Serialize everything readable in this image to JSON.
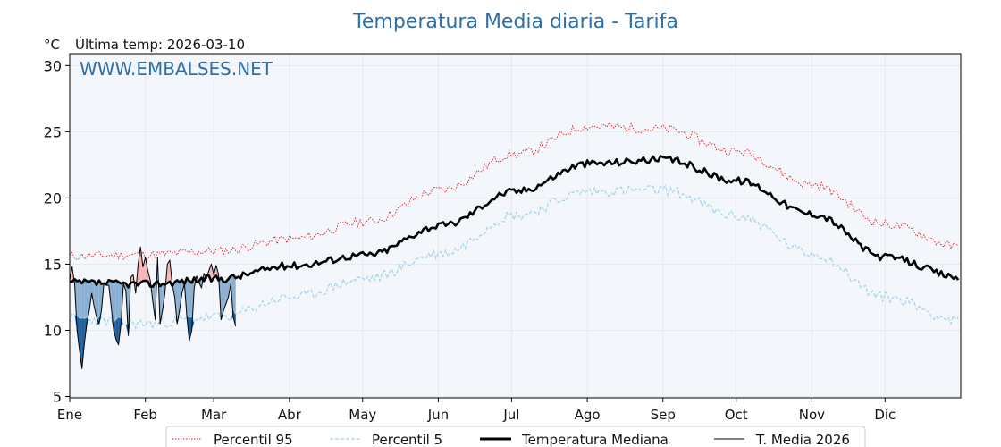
{
  "chart_data": {
    "type": "line",
    "title": "Temperatura Media diaria - Tarifa",
    "unit_label": "°C",
    "subtitle": "Última temp: 2026-03-10",
    "watermark": "WWW.EMBALSES.NET",
    "xlabel": "",
    "ylabel": "°C",
    "ylim": [
      4.9,
      30.9
    ],
    "yticks": [
      5,
      10,
      15,
      20,
      25,
      30
    ],
    "x_categories": [
      "Ene",
      "Feb",
      "Mar",
      "Abr",
      "May",
      "Jun",
      "Jul",
      "Ago",
      "Sep",
      "Oct",
      "Nov",
      "Dic"
    ],
    "month_start_days": [
      0,
      31,
      59,
      90,
      120,
      151,
      181,
      212,
      243,
      273,
      304,
      334
    ],
    "days_in_year": 365,
    "grid": true,
    "legend_position": "bottom-center",
    "colors": {
      "p95": "#e31a1c",
      "p5": "#9fd3e6",
      "median": "#000000",
      "current": "#000000",
      "above_fill": "#f4b6b6",
      "below_fill": "#8aafd2",
      "below_p5_fill": "#1f5f99",
      "band": "#f3f7fc",
      "grid": "#e6e9ee",
      "title": "#2e6fa7"
    },
    "series": [
      {
        "name": "Percentil 95",
        "style": "dotted",
        "monthly_anchor_values": [
          15.6,
          15.7,
          16.0,
          16.9,
          18.2,
          20.6,
          23.3,
          25.4,
          25.2,
          23.5,
          21.0,
          18.0,
          16.3
        ]
      },
      {
        "name": "Percentil 5",
        "style": "dashed",
        "monthly_anchor_values": [
          10.9,
          10.5,
          11.0,
          12.5,
          13.9,
          15.8,
          18.7,
          20.5,
          20.6,
          18.6,
          15.8,
          12.5,
          10.7
        ]
      },
      {
        "name": "Temperatura Mediana",
        "style": "solid-thick",
        "monthly_anchor_values": [
          13.6,
          13.5,
          13.9,
          14.9,
          15.7,
          17.9,
          20.5,
          22.6,
          22.9,
          21.3,
          18.8,
          15.5,
          14.0
        ]
      },
      {
        "name": "T. Media 2026",
        "style": "solid-thin",
        "start_day": 0,
        "values": [
          13.8,
          14.8,
          13.5,
          10.0,
          8.5,
          7.1,
          9.0,
          10.5,
          11.5,
          12.8,
          11.8,
          11.0,
          10.5,
          11.5,
          13.5,
          13.4,
          13.4,
          11.8,
          10.0,
          9.3,
          8.9,
          10.5,
          13.5,
          13.0,
          9.6,
          14.0,
          14.2,
          12.8,
          15.0,
          16.3,
          14.8,
          15.5,
          14.5,
          13.8,
          12.2,
          10.8,
          15.5,
          10.5,
          11.5,
          12.8,
          15.0,
          15.3,
          13.5,
          12.5,
          10.5,
          11.5,
          12.8,
          13.5,
          11.0,
          9.2,
          10.0,
          13.2,
          14.1,
          13.6,
          13.2,
          14.3,
          13.9,
          14.5,
          15.0,
          14.2,
          14.9,
          14.2,
          10.8,
          11.5,
          12.0,
          12.5,
          13.5,
          11.0,
          10.3
        ]
      }
    ]
  },
  "legend": {
    "items": [
      "Percentil 95",
      "Percentil 5",
      "Temperatura Mediana",
      "T. Media 2026"
    ]
  }
}
